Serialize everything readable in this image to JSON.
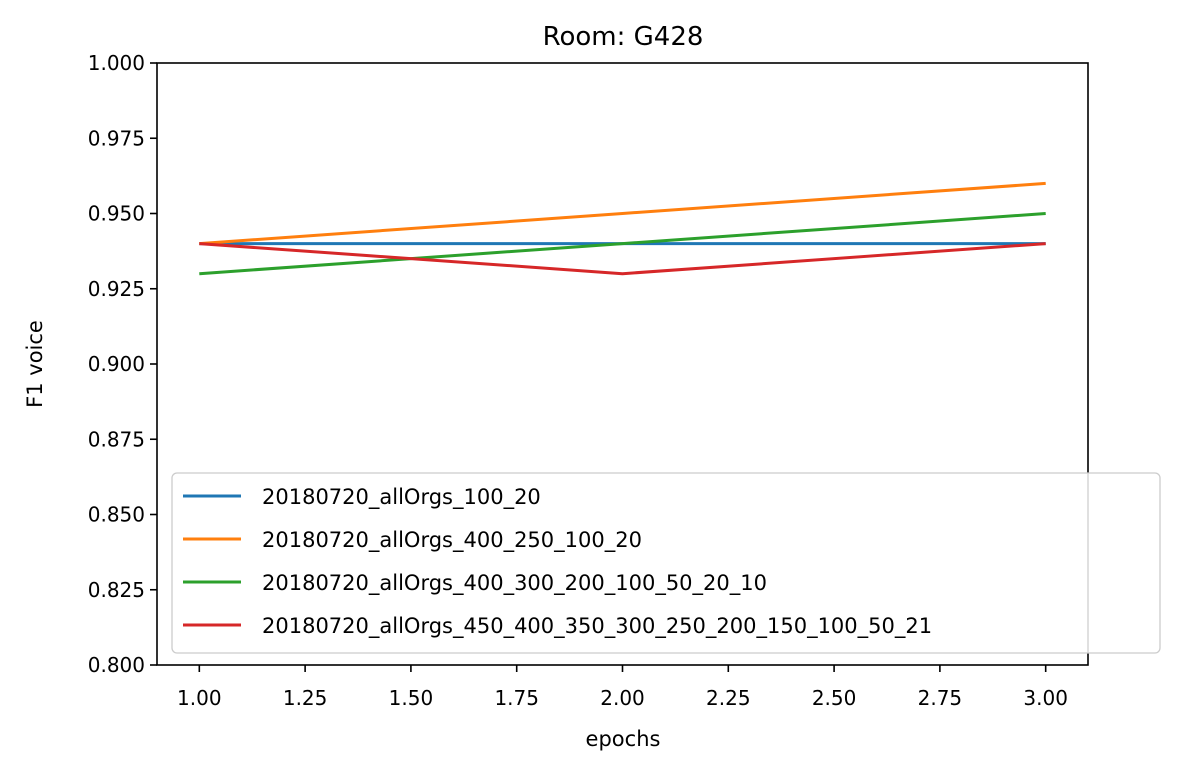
{
  "chart_data": {
    "type": "line",
    "title": "Room: G428",
    "xlabel": "epochs",
    "ylabel": "F1 voice",
    "xlim": [
      0.9,
      3.1
    ],
    "ylim": [
      0.8,
      1.0
    ],
    "xticks": [
      1.0,
      1.25,
      1.5,
      1.75,
      2.0,
      2.25,
      2.5,
      2.75,
      3.0
    ],
    "xtick_labels": [
      "1.00",
      "1.25",
      "1.50",
      "1.75",
      "2.00",
      "2.25",
      "2.50",
      "2.75",
      "3.00"
    ],
    "yticks": [
      0.8,
      0.825,
      0.85,
      0.875,
      0.9,
      0.925,
      0.95,
      0.975,
      1.0
    ],
    "ytick_labels": [
      "0.800",
      "0.825",
      "0.850",
      "0.875",
      "0.900",
      "0.925",
      "0.950",
      "0.975",
      "1.000"
    ],
    "grid": false,
    "legend_position": "lower-left",
    "x": [
      1,
      2,
      3
    ],
    "series": [
      {
        "name": "20180720_allOrgs_100_20",
        "values": [
          0.94,
          0.94,
          0.94
        ],
        "color": "#1f77b4"
      },
      {
        "name": "20180720_allOrgs_400_250_100_20",
        "values": [
          0.94,
          0.95,
          0.96
        ],
        "color": "#ff7f0e"
      },
      {
        "name": "20180720_allOrgs_400_300_200_100_50_20_10",
        "values": [
          0.93,
          0.94,
          0.95
        ],
        "color": "#2ca02c"
      },
      {
        "name": "20180720_allOrgs_450_400_350_300_250_200_150_100_50_21",
        "values": [
          0.94,
          0.93,
          0.94
        ],
        "color": "#d62728"
      }
    ]
  }
}
